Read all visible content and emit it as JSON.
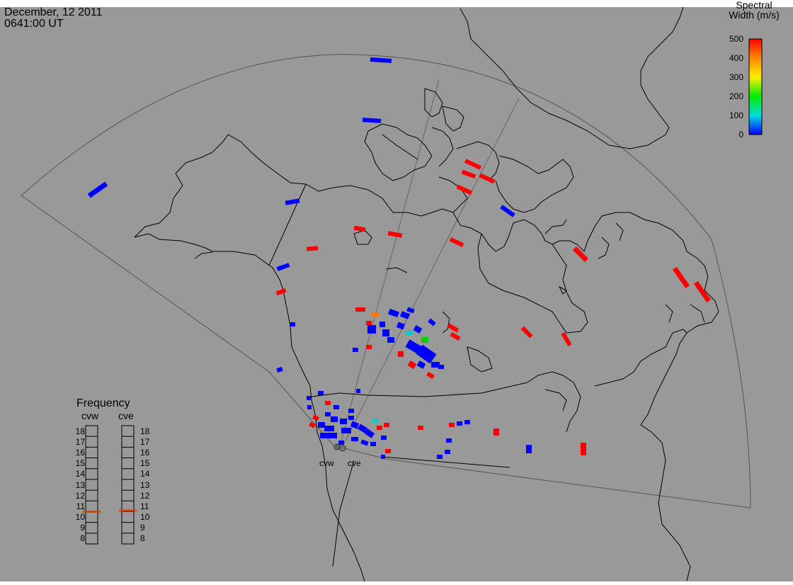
{
  "header": {
    "date": "December, 12 2011",
    "time": "0641:00 UT"
  },
  "colorbar": {
    "title_line1": "Spectral",
    "title_line2": "Width (m/s)",
    "ticks": [
      "500",
      "400",
      "300",
      "200",
      "100",
      "0"
    ],
    "stops": [
      "#ff0000",
      "#ff8800",
      "#ffee00",
      "#00ee00",
      "#00dddd",
      "#0000ff"
    ]
  },
  "frequency": {
    "title": "Frequency",
    "radars": [
      "cvw",
      "cve"
    ],
    "levels": [
      "18",
      "17",
      "16",
      "15",
      "14",
      "13",
      "12",
      "11",
      "10",
      "9",
      "8"
    ],
    "cvw_value": 10.5,
    "cve_value": 10.6,
    "marker_color": "#e83c00"
  },
  "sites": {
    "west": "cvw",
    "east": "cve"
  },
  "colors": {
    "background": "#999999",
    "coast": "#000000",
    "fov": "#555555",
    "low": "#0000ff",
    "high": "#ff0000",
    "mid_green": "#00cc00",
    "mid_orange": "#ff7700",
    "cyan": "#00cccc"
  }
}
